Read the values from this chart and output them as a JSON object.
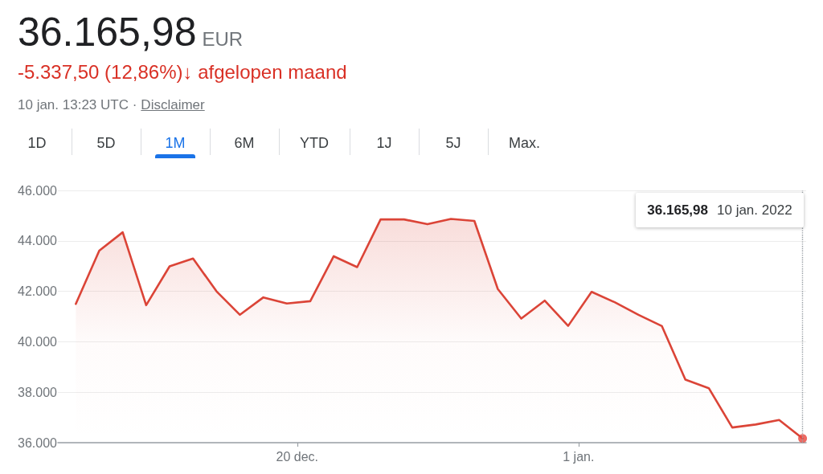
{
  "chart_data": {
    "type": "area",
    "title": "36.165,98",
    "subtitle": "-5.337,50 (12,86%)↓ afgelopen maand",
    "annotations": [
      "EUR",
      "10 jan. 13:23 UTC ·",
      "Disclaimer",
      "1D",
      "5D",
      "1M",
      "6M",
      "YTD",
      "1J",
      "5J",
      "Max.",
      "36.165,98",
      "10 jan. 2022"
    ],
    "x": [
      "2021-12-10T13:23",
      "2021-12-11T13:23",
      "2021-12-12T13:23",
      "2021-12-13T13:23",
      "2021-12-14T13:23",
      "2021-12-15T13:23",
      "2021-12-16T13:23",
      "2021-12-17T13:23",
      "2021-12-18T13:23",
      "2021-12-19T13:23",
      "2021-12-20T13:23",
      "2021-12-21T13:23",
      "2021-12-22T13:23",
      "2021-12-23T13:23",
      "2021-12-24T13:23",
      "2021-12-25T13:23",
      "2021-12-26T13:23",
      "2021-12-27T13:23",
      "2021-12-28T13:23",
      "2021-12-29T13:23",
      "2021-12-30T13:23",
      "2021-12-31T13:23",
      "2022-01-01T13:23",
      "2022-01-02T13:23",
      "2022-01-03T13:23",
      "2022-01-04T13:23",
      "2022-01-05T13:23",
      "2022-01-06T13:23",
      "2022-01-07T13:23",
      "2022-01-08T13:23",
      "2022-01-09T13:23",
      "2022-01-10T13:23"
    ],
    "series": [
      {
        "color": "#db4437",
        "values": [
          41500,
          43610,
          44340,
          41450,
          42990,
          43300,
          42000,
          41070,
          41760,
          41520,
          41610,
          43390,
          42960,
          44850,
          44850,
          44660,
          44870,
          44790,
          42090,
          40920,
          41630,
          40630,
          41980,
          41560,
          41070,
          40620,
          38500,
          38160,
          36600,
          36720,
          36900,
          36165.98
        ]
      },
      {
        "type": "scatter",
        "marker": "circle",
        "color": "#e8453c",
        "x": [
          "2022-01-10T13:23"
        ],
        "values": [
          36165.98
        ]
      }
    ],
    "marker": "none",
    "xlim": [
      "2021-12-09T19:00",
      "2022-01-10T17:00"
    ],
    "xticks": [
      {
        "value": "2021-12-20",
        "label": "20 dec."
      },
      {
        "value": "2022-01-01",
        "label": "1 jan."
      }
    ],
    "ylim": [
      36000,
      46000
    ],
    "yticks": [
      {
        "value": 36000,
        "label": "36.000"
      },
      {
        "value": 38000,
        "label": "38.000"
      },
      {
        "value": 40000,
        "label": "40.000"
      },
      {
        "value": 42000,
        "label": "42.000"
      },
      {
        "value": 44000,
        "label": "44.000"
      },
      {
        "value": 46000,
        "label": "46.000"
      }
    ],
    "grid": "y",
    "ref_lines": [
      {
        "axis": "x",
        "value": "2022-01-10T13:23",
        "line_style": "dotted",
        "color": "#9aa0a6"
      }
    ]
  }
}
